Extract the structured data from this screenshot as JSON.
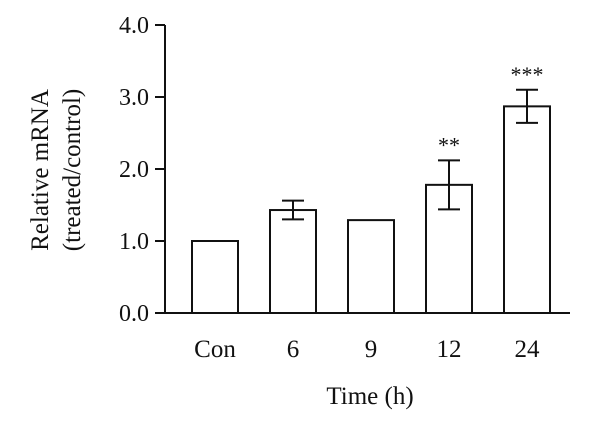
{
  "chart_data": {
    "type": "bar",
    "title": "",
    "xlabel": "Time (h)",
    "ylabel_lines": [
      "Relative mRNA",
      "(treated/control)"
    ],
    "ylim": [
      0,
      4
    ],
    "yticks": [
      0,
      1,
      2,
      3,
      4
    ],
    "ytick_labels": [
      "0.0",
      "1.0",
      "2.0",
      "3.0",
      "4.0"
    ],
    "categories": [
      "Con",
      "6",
      "9",
      "12",
      "24"
    ],
    "values": [
      1.0,
      1.43,
      1.29,
      1.78,
      2.87
    ],
    "errors": [
      0,
      0.13,
      0,
      0.34,
      0.23
    ],
    "significance": [
      "",
      "",
      "",
      "**",
      "***"
    ],
    "grid": false,
    "bar_fill": "#ffffff",
    "bar_stroke": "#111111"
  }
}
